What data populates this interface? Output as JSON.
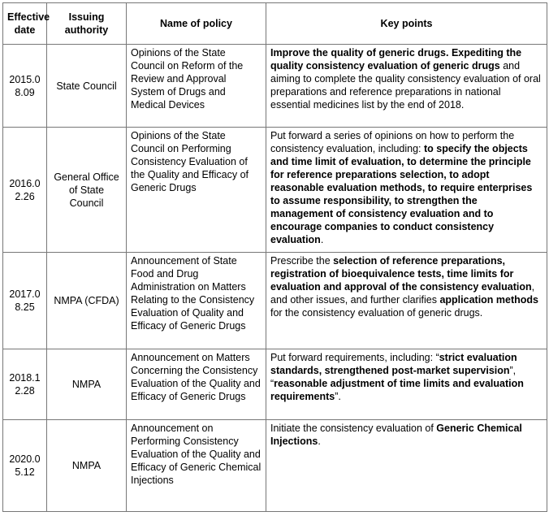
{
  "table": {
    "header": [
      "Effective date",
      "Issuing authority",
      "Name of policy",
      "Key points"
    ],
    "rows": [
      {
        "date": "2015.08.09",
        "authority": "State Council",
        "policy": "Opinions of the State Council on Reform of the Review and Approval System of Drugs and Medical Devices",
        "key_points": [
          {
            "text": "Improve the quality of generic drugs. Expediting the quality consistency evaluation of generic drugs",
            "bold": true
          },
          {
            "text": " and aiming to complete the quality consistency evaluation of oral preparations and reference preparations in national essential medicines list by the end of 2018.",
            "bold": false
          }
        ]
      },
      {
        "date": "2016.02.26",
        "authority": "General Office of State Council",
        "policy": "Opinions of the State Council on Performing Consistency Evaluation of the Quality and Efficacy of Generic Drugs",
        "key_points": [
          {
            "text": "Put forward a series of opinions on how to perform the consistency evaluation, including: ",
            "bold": false
          },
          {
            "text": "to specify the objects and time limit of evaluation, to determine the principle for reference preparations selection, to adopt reasonable evaluation methods, to require enterprises to assume responsibility, to strengthen the management of consistency evaluation and to encourage companies to conduct consistency evaluation",
            "bold": true
          },
          {
            "text": ".",
            "bold": false
          }
        ]
      },
      {
        "date": "2017.08.25",
        "authority": "NMPA (CFDA)",
        "policy": "Announcement of State Food and Drug Administration on Matters Relating to the Consistency Evaluation of Quality and Efficacy of Generic Drugs",
        "key_points": [
          {
            "text": "Prescribe the ",
            "bold": false
          },
          {
            "text": "selection of reference preparations, registration of bioequivalence tests, time limits for evaluation and approval of the consistency evaluation",
            "bold": true
          },
          {
            "text": ", and other issues, and further clarifies ",
            "bold": false
          },
          {
            "text": "application methods",
            "bold": true
          },
          {
            "text": " for the consistency evaluation of generic drugs.",
            "bold": false
          }
        ]
      },
      {
        "date": "2018.12.28",
        "authority": "NMPA",
        "policy": "Announcement on Matters Concerning the Consistency Evaluation of the Quality and Efficacy of Generic Drugs",
        "key_points": [
          {
            "text": "Put forward requirements, including: “",
            "bold": false
          },
          {
            "text": "strict evaluation standards, strengthened post-market supervision",
            "bold": true
          },
          {
            "text": "”, “",
            "bold": false
          },
          {
            "text": "reasonable adjustment of time limits and evaluation requirements",
            "bold": true
          },
          {
            "text": "”.",
            "bold": false
          }
        ]
      },
      {
        "date": "2020.05.12",
        "authority": "NMPA",
        "policy": "Announcement on Performing Consistency Evaluation of the Quality and Efficacy of Generic Chemical Injections",
        "key_points": [
          {
            "text": "Initiate the consistency evaluation of ",
            "bold": false
          },
          {
            "text": "Generic Chemical Injections",
            "bold": true
          },
          {
            "text": ".",
            "bold": false
          }
        ]
      }
    ]
  }
}
